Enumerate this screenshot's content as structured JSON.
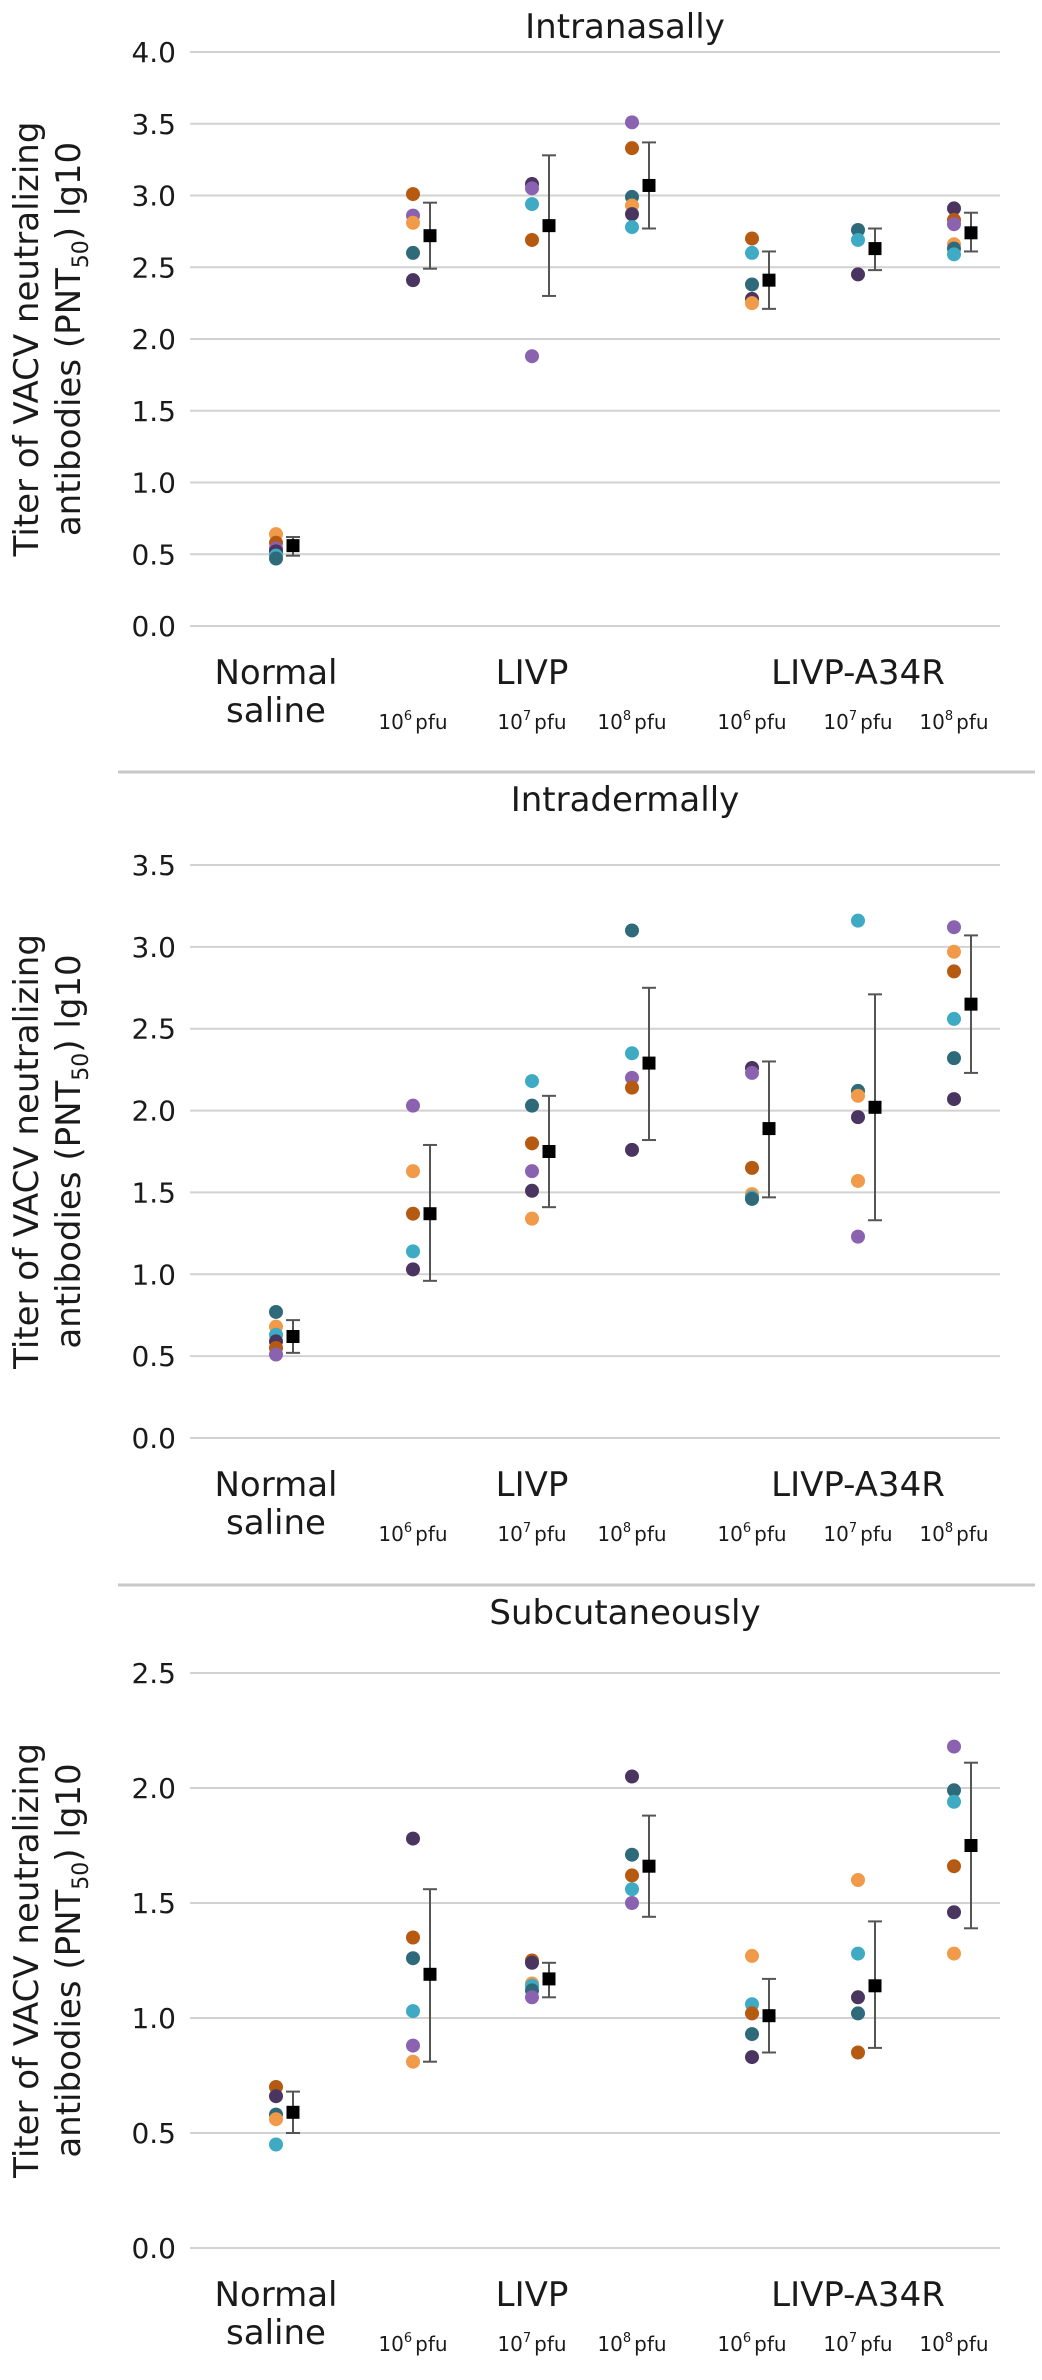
{
  "colors": {
    "purple": "#8a62b0",
    "teal": "#2e6a7a",
    "dark_purple": "#4a3560",
    "cyan": "#3eaac4",
    "brown": "#b55a10",
    "orange": "#f09a4a",
    "mean": "#000000",
    "error_bar": "#555555",
    "grid": "#d2d2d2"
  },
  "shared_labels": {
    "ylabel_line1": "Titer of VACV neutralizing",
    "ylabel_line2": "antibodies (PNT",
    "ylabel_sub": "50",
    "ylabel_end": ") lg10",
    "cat_saline_1": "Normal",
    "cat_saline_2": "saline",
    "cat_livp": "LIVP",
    "cat_a34r": "LIVP-A34R",
    "dose_1": "10",
    "dose_1_sup": "6",
    "dose_2": "10",
    "dose_2_sup": "7",
    "dose_3": "10",
    "dose_3_sup": "8",
    "dose_unit": "pfu"
  },
  "chart_data": [
    {
      "type": "scatter",
      "title": "Intranasally",
      "ylim": [
        0,
        4.0
      ],
      "yticks": [
        "0.0",
        "0.5",
        "1.0",
        "1.5",
        "2.0",
        "2.5",
        "3.0",
        "3.5",
        "4.0"
      ],
      "groups": [
        {
          "category": "Normal saline",
          "dose": "",
          "points": [
            {
              "color": "orange",
              "value": 0.64
            },
            {
              "color": "brown",
              "value": 0.58
            },
            {
              "color": "purple",
              "value": 0.54
            },
            {
              "color": "dark_purple",
              "value": 0.52
            },
            {
              "color": "cyan",
              "value": 0.49
            },
            {
              "color": "teal",
              "value": 0.47
            }
          ],
          "mean": 0.56,
          "err_low": 0.49,
          "err_high": 0.62
        },
        {
          "category": "LIVP",
          "dose": "10^6 pfu",
          "points": [
            {
              "color": "brown",
              "value": 3.01
            },
            {
              "color": "purple",
              "value": 2.86
            },
            {
              "color": "orange",
              "value": 2.81
            },
            {
              "color": "teal",
              "value": 2.6
            },
            {
              "color": "dark_purple",
              "value": 2.41
            }
          ],
          "mean": 2.72,
          "err_low": 2.49,
          "err_high": 2.95
        },
        {
          "category": "LIVP",
          "dose": "10^7 pfu",
          "points": [
            {
              "color": "dark_purple",
              "value": 3.08
            },
            {
              "color": "purple",
              "value": 3.05
            },
            {
              "color": "cyan",
              "value": 2.94
            },
            {
              "color": "brown",
              "value": 2.69
            },
            {
              "color": "purple",
              "value": 1.88
            }
          ],
          "mean": 2.79,
          "err_low": 2.3,
          "err_high": 3.28
        },
        {
          "category": "LIVP",
          "dose": "10^8 pfu",
          "points": [
            {
              "color": "purple",
              "value": 3.51
            },
            {
              "color": "brown",
              "value": 3.33
            },
            {
              "color": "teal",
              "value": 2.99
            },
            {
              "color": "orange",
              "value": 2.93
            },
            {
              "color": "dark_purple",
              "value": 2.87
            },
            {
              "color": "cyan",
              "value": 2.78
            }
          ],
          "mean": 3.07,
          "err_low": 2.77,
          "err_high": 3.37
        },
        {
          "category": "LIVP-A34R",
          "dose": "10^6 pfu",
          "points": [
            {
              "color": "brown",
              "value": 2.7
            },
            {
              "color": "cyan",
              "value": 2.6
            },
            {
              "color": "teal",
              "value": 2.38
            },
            {
              "color": "dark_purple",
              "value": 2.28
            },
            {
              "color": "orange",
              "value": 2.25
            }
          ],
          "mean": 2.41,
          "err_low": 2.21,
          "err_high": 2.61
        },
        {
          "category": "LIVP-A34R",
          "dose": "10^7 pfu",
          "points": [
            {
              "color": "teal",
              "value": 2.76
            },
            {
              "color": "cyan",
              "value": 2.69
            },
            {
              "color": "dark_purple",
              "value": 2.45
            }
          ],
          "mean": 2.63,
          "err_low": 2.48,
          "err_high": 2.77
        },
        {
          "category": "LIVP-A34R",
          "dose": "10^8 pfu",
          "points": [
            {
              "color": "dark_purple",
              "value": 2.91
            },
            {
              "color": "brown",
              "value": 2.83
            },
            {
              "color": "purple",
              "value": 2.8
            },
            {
              "color": "orange",
              "value": 2.66
            },
            {
              "color": "teal",
              "value": 2.63
            },
            {
              "color": "cyan",
              "value": 2.59
            }
          ],
          "mean": 2.74,
          "err_low": 2.61,
          "err_high": 2.88
        }
      ]
    },
    {
      "type": "scatter",
      "title": "Intradermally",
      "ylim": [
        0,
        3.5
      ],
      "yticks": [
        "0.0",
        "0.5",
        "1.0",
        "1.5",
        "2.0",
        "2.5",
        "3.0",
        "3.5"
      ],
      "groups": [
        {
          "category": "Normal saline",
          "dose": "",
          "points": [
            {
              "color": "teal",
              "value": 0.77
            },
            {
              "color": "orange",
              "value": 0.68
            },
            {
              "color": "cyan",
              "value": 0.63
            },
            {
              "color": "dark_purple",
              "value": 0.59
            },
            {
              "color": "brown",
              "value": 0.55
            },
            {
              "color": "purple",
              "value": 0.51
            }
          ],
          "mean": 0.62,
          "err_low": 0.52,
          "err_high": 0.72
        },
        {
          "category": "LIVP",
          "dose": "10^6 pfu",
          "points": [
            {
              "color": "purple",
              "value": 2.03
            },
            {
              "color": "orange",
              "value": 1.63
            },
            {
              "color": "brown",
              "value": 1.37
            },
            {
              "color": "cyan",
              "value": 1.14
            },
            {
              "color": "dark_purple",
              "value": 1.03
            }
          ],
          "mean": 1.37,
          "err_low": 0.96,
          "err_high": 1.79
        },
        {
          "category": "LIVP",
          "dose": "10^7 pfu",
          "points": [
            {
              "color": "cyan",
              "value": 2.18
            },
            {
              "color": "teal",
              "value": 2.03
            },
            {
              "color": "brown",
              "value": 1.8
            },
            {
              "color": "purple",
              "value": 1.63
            },
            {
              "color": "dark_purple",
              "value": 1.51
            },
            {
              "color": "orange",
              "value": 1.34
            }
          ],
          "mean": 1.75,
          "err_low": 1.41,
          "err_high": 2.09
        },
        {
          "category": "LIVP",
          "dose": "10^8 pfu",
          "points": [
            {
              "color": "teal",
              "value": 3.1
            },
            {
              "color": "cyan",
              "value": 2.35
            },
            {
              "color": "purple",
              "value": 2.2
            },
            {
              "color": "brown",
              "value": 2.14
            },
            {
              "color": "dark_purple",
              "value": 1.76
            }
          ],
          "mean": 2.29,
          "err_low": 1.82,
          "err_high": 2.75
        },
        {
          "category": "LIVP-A34R",
          "dose": "10^6 pfu",
          "points": [
            {
              "color": "dark_purple",
              "value": 2.26
            },
            {
              "color": "purple",
              "value": 2.23
            },
            {
              "color": "brown",
              "value": 1.65
            },
            {
              "color": "orange",
              "value": 1.49
            },
            {
              "color": "cyan",
              "value": 1.47
            },
            {
              "color": "teal",
              "value": 1.46
            }
          ],
          "mean": 1.89,
          "err_low": 1.47,
          "err_high": 2.3
        },
        {
          "category": "LIVP-A34R",
          "dose": "10^7 pfu",
          "points": [
            {
              "color": "cyan",
              "value": 3.16
            },
            {
              "color": "teal",
              "value": 2.12
            },
            {
              "color": "orange",
              "value": 2.09
            },
            {
              "color": "dark_purple",
              "value": 1.96
            },
            {
              "color": "orange",
              "value": 1.57
            },
            {
              "color": "purple",
              "value": 1.23
            }
          ],
          "mean": 2.02,
          "err_low": 1.33,
          "err_high": 2.71
        },
        {
          "category": "LIVP-A34R",
          "dose": "10^8 pfu",
          "points": [
            {
              "color": "purple",
              "value": 3.12
            },
            {
              "color": "orange",
              "value": 2.97
            },
            {
              "color": "brown",
              "value": 2.85
            },
            {
              "color": "cyan",
              "value": 2.56
            },
            {
              "color": "teal",
              "value": 2.32
            },
            {
              "color": "dark_purple",
              "value": 2.07
            }
          ],
          "mean": 2.65,
          "err_low": 2.23,
          "err_high": 3.07
        }
      ]
    },
    {
      "type": "scatter",
      "title": "Subcutaneously",
      "ylim": [
        0,
        2.5
      ],
      "yticks": [
        "0.0",
        "0.5",
        "1.0",
        "1.5",
        "2.0",
        "2.5"
      ],
      "groups": [
        {
          "category": "Normal saline",
          "dose": "",
          "points": [
            {
              "color": "brown",
              "value": 0.7
            },
            {
              "color": "dark_purple",
              "value": 0.66
            },
            {
              "color": "teal",
              "value": 0.58
            },
            {
              "color": "orange",
              "value": 0.56
            },
            {
              "color": "cyan",
              "value": 0.45
            }
          ],
          "mean": 0.59,
          "err_low": 0.5,
          "err_high": 0.68
        },
        {
          "category": "LIVP",
          "dose": "10^6 pfu",
          "points": [
            {
              "color": "dark_purple",
              "value": 1.78
            },
            {
              "color": "brown",
              "value": 1.35
            },
            {
              "color": "teal",
              "value": 1.26
            },
            {
              "color": "cyan",
              "value": 1.03
            },
            {
              "color": "purple",
              "value": 0.88
            },
            {
              "color": "orange",
              "value": 0.81
            }
          ],
          "mean": 1.19,
          "err_low": 0.81,
          "err_high": 1.56
        },
        {
          "category": "LIVP",
          "dose": "10^7 pfu",
          "points": [
            {
              "color": "brown",
              "value": 1.25
            },
            {
              "color": "dark_purple",
              "value": 1.24
            },
            {
              "color": "orange",
              "value": 1.15
            },
            {
              "color": "cyan",
              "value": 1.14
            },
            {
              "color": "teal",
              "value": 1.12
            },
            {
              "color": "purple",
              "value": 1.09
            }
          ],
          "mean": 1.17,
          "err_low": 1.09,
          "err_high": 1.24
        },
        {
          "category": "LIVP",
          "dose": "10^8 pfu",
          "points": [
            {
              "color": "dark_purple",
              "value": 2.05
            },
            {
              "color": "teal",
              "value": 1.71
            },
            {
              "color": "brown",
              "value": 1.62
            },
            {
              "color": "cyan",
              "value": 1.56
            },
            {
              "color": "purple",
              "value": 1.5
            }
          ],
          "mean": 1.66,
          "err_low": 1.44,
          "err_high": 1.88
        },
        {
          "category": "LIVP-A34R",
          "dose": "10^6 pfu",
          "points": [
            {
              "color": "orange",
              "value": 1.27
            },
            {
              "color": "cyan",
              "value": 1.06
            },
            {
              "color": "brown",
              "value": 1.02
            },
            {
              "color": "teal",
              "value": 0.93
            },
            {
              "color": "dark_purple",
              "value": 0.83
            }
          ],
          "mean": 1.01,
          "err_low": 0.85,
          "err_high": 1.17
        },
        {
          "category": "LIVP-A34R",
          "dose": "10^7 pfu",
          "points": [
            {
              "color": "orange",
              "value": 1.6
            },
            {
              "color": "cyan",
              "value": 1.28
            },
            {
              "color": "dark_purple",
              "value": 1.09
            },
            {
              "color": "teal",
              "value": 1.02
            },
            {
              "color": "brown",
              "value": 0.85
            }
          ],
          "mean": 1.14,
          "err_low": 0.87,
          "err_high": 1.42
        },
        {
          "category": "LIVP-A34R",
          "dose": "10^8 pfu",
          "points": [
            {
              "color": "purple",
              "value": 2.18
            },
            {
              "color": "teal",
              "value": 1.99
            },
            {
              "color": "cyan",
              "value": 1.94
            },
            {
              "color": "brown",
              "value": 1.66
            },
            {
              "color": "dark_purple",
              "value": 1.46
            },
            {
              "color": "orange",
              "value": 1.28
            }
          ],
          "mean": 1.75,
          "err_low": 1.39,
          "err_high": 2.11
        }
      ]
    }
  ]
}
